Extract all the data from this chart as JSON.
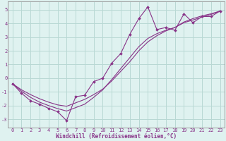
{
  "xlabel": "Windchill (Refroidissement éolien,°C)",
  "bg_color": "#dff2f0",
  "grid_color": "#b8d8d4",
  "line_color": "#883388",
  "xlim": [
    -0.5,
    23.5
  ],
  "ylim": [
    -3.6,
    5.6
  ],
  "xticks": [
    0,
    1,
    2,
    3,
    4,
    5,
    6,
    7,
    8,
    9,
    10,
    11,
    12,
    13,
    14,
    15,
    16,
    17,
    18,
    19,
    20,
    21,
    22,
    23
  ],
  "yticks": [
    -3,
    -2,
    -1,
    0,
    1,
    2,
    3,
    4,
    5
  ],
  "line1_x": [
    0,
    1,
    2,
    3,
    4,
    5,
    6,
    7,
    8,
    9,
    10,
    11,
    12,
    13,
    14,
    15,
    16,
    17,
    18,
    19,
    20,
    21,
    22,
    23
  ],
  "line1_y": [
    -0.4,
    -1.1,
    -1.65,
    -1.9,
    -2.2,
    -2.45,
    -3.1,
    -1.35,
    -1.25,
    -0.25,
    0.0,
    1.1,
    1.8,
    3.2,
    4.35,
    5.2,
    3.55,
    3.7,
    3.5,
    4.7,
    4.05,
    4.5,
    4.5,
    4.9
  ],
  "line2_x": [
    0,
    1,
    2,
    3,
    4,
    5,
    6,
    7,
    8,
    9,
    10,
    11,
    12,
    13,
    14,
    15,
    16,
    17,
    18,
    19,
    20,
    21,
    22,
    23
  ],
  "line2_y": [
    -0.4,
    -0.95,
    -1.4,
    -1.75,
    -2.0,
    -2.22,
    -2.4,
    -2.15,
    -1.9,
    -1.4,
    -0.85,
    -0.1,
    0.7,
    1.5,
    2.3,
    2.9,
    3.25,
    3.5,
    3.7,
    4.05,
    4.25,
    4.45,
    4.65,
    4.9
  ],
  "line3_x": [
    0,
    1,
    2,
    3,
    4,
    5,
    6,
    7,
    8,
    9,
    10,
    11,
    12,
    13,
    14,
    15,
    16,
    17,
    18,
    19,
    20,
    21,
    22,
    23
  ],
  "line3_y": [
    -0.4,
    -0.85,
    -1.2,
    -1.5,
    -1.75,
    -1.95,
    -2.05,
    -1.8,
    -1.55,
    -1.2,
    -0.8,
    -0.2,
    0.5,
    1.2,
    2.0,
    2.65,
    3.1,
    3.45,
    3.7,
    4.1,
    4.35,
    4.55,
    4.7,
    4.9
  ],
  "tick_fontsize": 5.0,
  "xlabel_fontsize": 5.5
}
